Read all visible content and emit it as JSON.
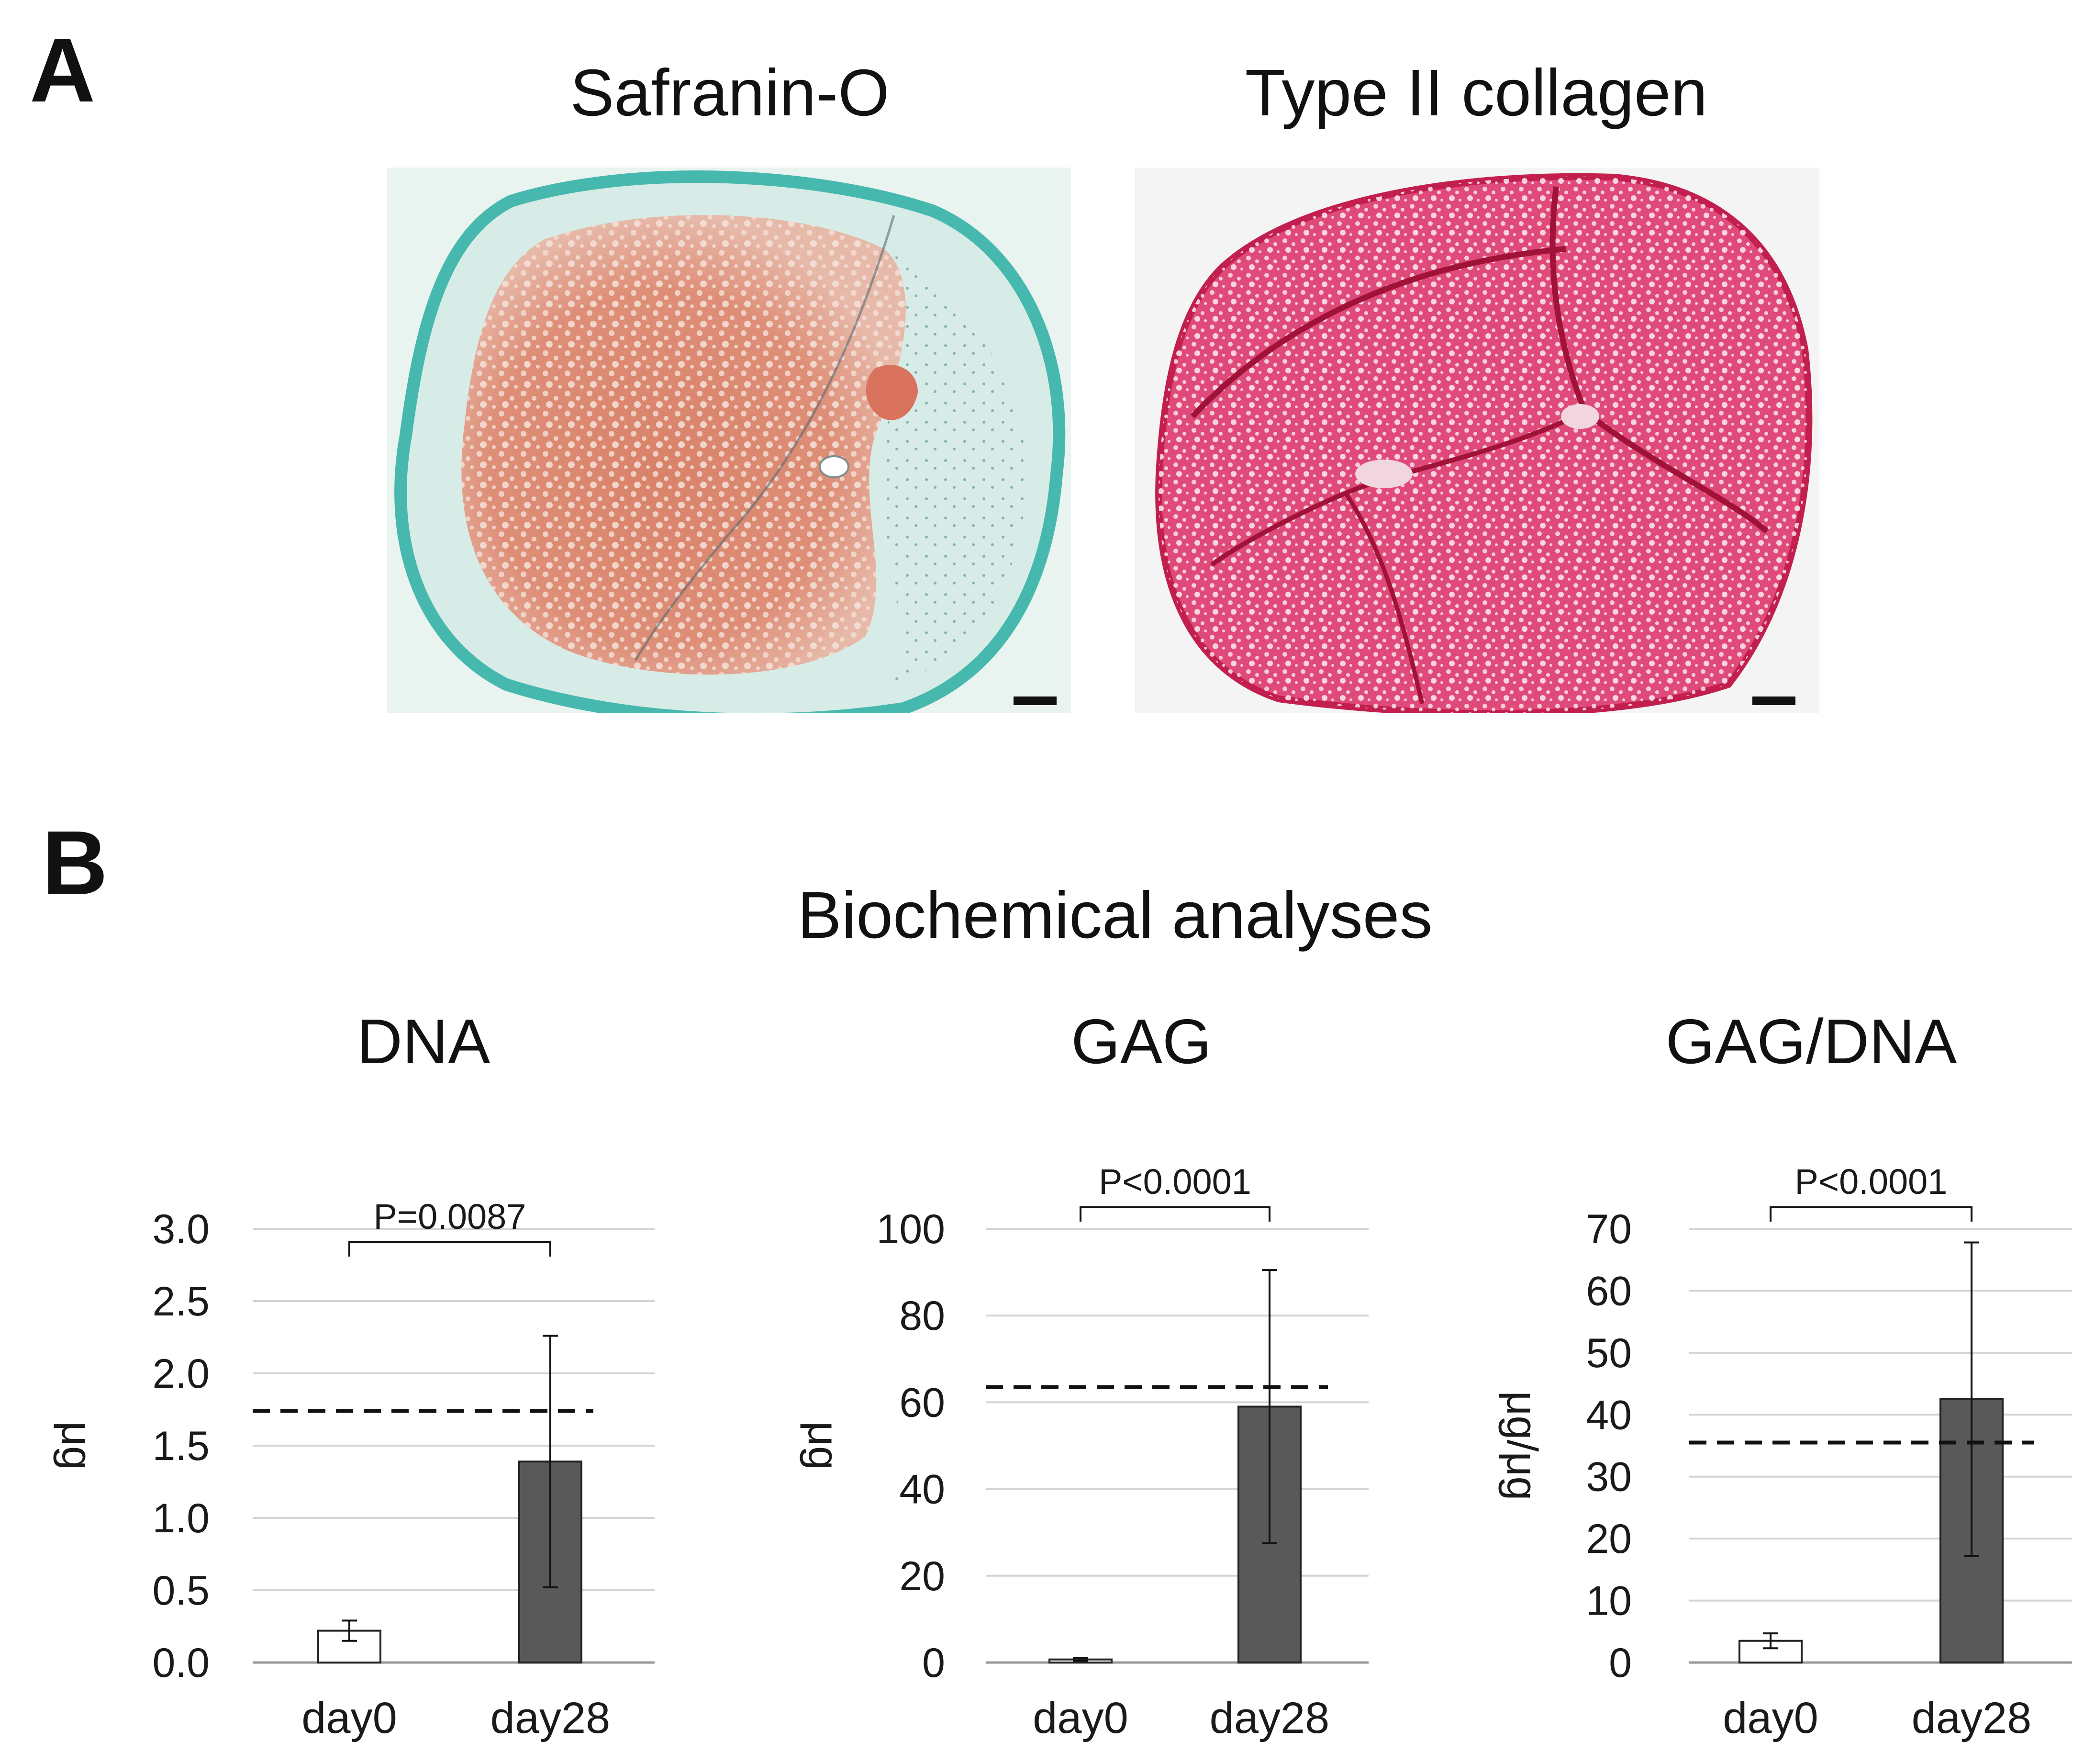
{
  "panel_a": {
    "letter": "A",
    "images": [
      {
        "title": "Safranin-O",
        "stain_colors": {
          "background": "#e9f4f1",
          "tissue": "#d9826a",
          "rim": "#47b8ad",
          "scale_bar": "#111111"
        }
      },
      {
        "title": "Type II collagen",
        "stain_colors": {
          "background": "#f4f4f4",
          "tissue": "#e04a7a",
          "cracks": "#b5173f",
          "scale_bar": "#111111"
        }
      }
    ]
  },
  "panel_b": {
    "letter": "B",
    "title": "Biochemical analyses"
  },
  "chart_data": [
    {
      "type": "bar",
      "title": "DNA",
      "categories": [
        "day0",
        "day28"
      ],
      "values": [
        0.22,
        1.39
      ],
      "errors": [
        0.07,
        0.87
      ],
      "bar_colors": [
        "#ffffff",
        "#595959"
      ],
      "ylabel": "μg",
      "ylim": [
        0,
        3.0
      ],
      "yticks": [
        "0.0",
        "0.5",
        "1.0",
        "1.5",
        "2.0",
        "2.5",
        "3.0"
      ],
      "ytick_values": [
        0,
        0.5,
        1.0,
        1.5,
        2.0,
        2.5,
        3.0
      ],
      "reference_line": 1.74,
      "significance": "P=0.0087",
      "grid": true
    },
    {
      "type": "bar",
      "title": "GAG",
      "categories": [
        "day0",
        "day28"
      ],
      "values": [
        0.7,
        59
      ],
      "errors": [
        0.3,
        31.5
      ],
      "bar_colors": [
        "#ffffff",
        "#595959"
      ],
      "ylabel": "μg",
      "ylim": [
        0,
        100
      ],
      "yticks": [
        "0",
        "20",
        "40",
        "60",
        "80",
        "100"
      ],
      "ytick_values": [
        0,
        20,
        40,
        60,
        80,
        100
      ],
      "reference_line": 63.5,
      "significance": "P<0.0001",
      "grid": true
    },
    {
      "type": "bar",
      "title": "GAG/DNA",
      "categories": [
        "day0",
        "day28"
      ],
      "values": [
        3.5,
        42.5
      ],
      "errors": [
        1.2,
        25.3
      ],
      "bar_colors": [
        "#ffffff",
        "#595959"
      ],
      "ylabel": "μg/μg",
      "ylim": [
        0,
        70
      ],
      "yticks": [
        "0",
        "10",
        "20",
        "30",
        "40",
        "50",
        "60",
        "70"
      ],
      "ytick_values": [
        0,
        10,
        20,
        30,
        40,
        50,
        60,
        70
      ],
      "reference_line": 35.5,
      "significance": "P<0.0001",
      "grid": true
    }
  ]
}
